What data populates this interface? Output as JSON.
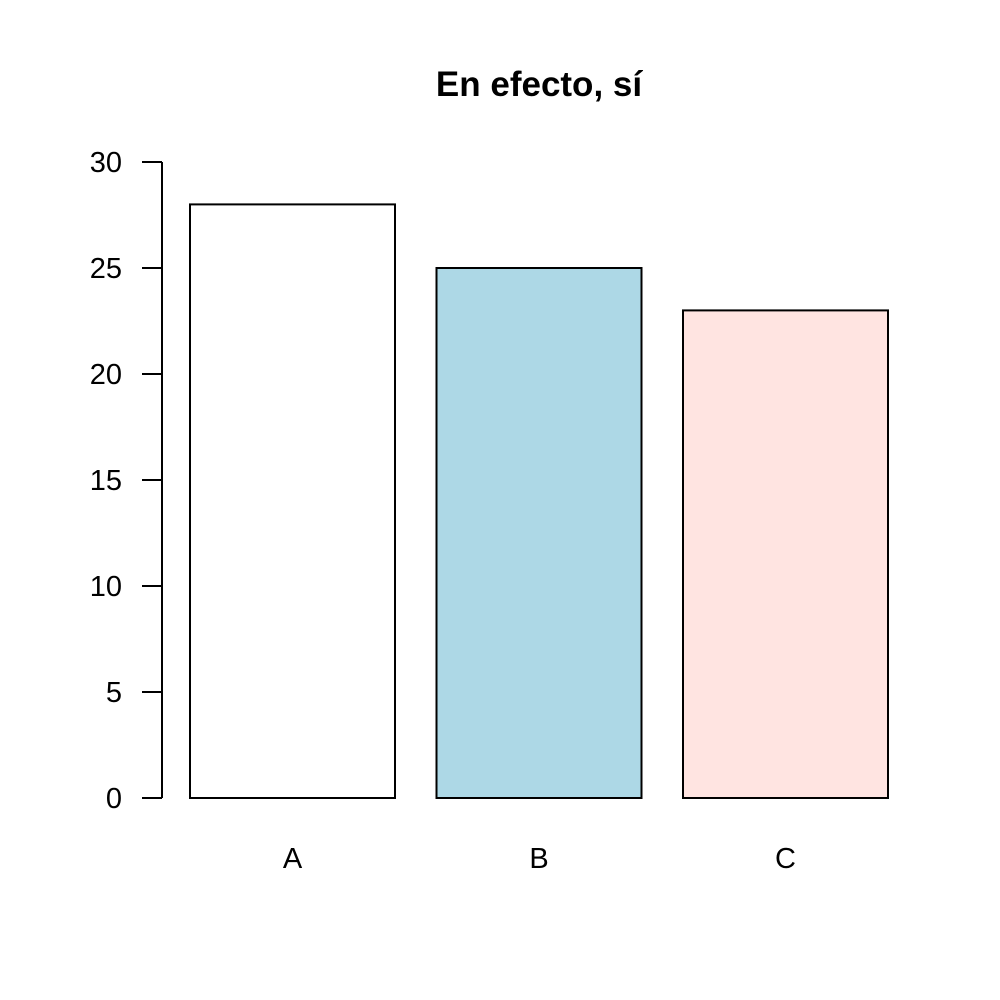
{
  "chart_data": {
    "type": "bar",
    "title": "En efecto, sí",
    "xlabel": "",
    "ylabel": "",
    "categories": [
      "A",
      "B",
      "C"
    ],
    "values": [
      28,
      25,
      23
    ],
    "colors": [
      "#ffffff",
      "#add8e6",
      "#ffe4e1"
    ],
    "ylim": [
      0,
      30
    ],
    "yticks": [
      0,
      5,
      10,
      15,
      20,
      25,
      30
    ],
    "grid": false,
    "legend": "none"
  }
}
